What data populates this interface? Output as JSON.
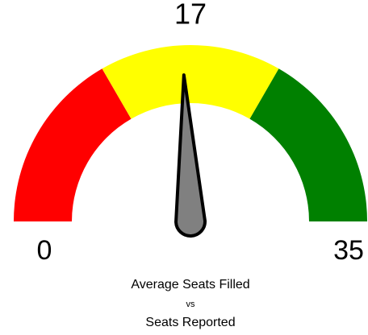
{
  "chart_data": {
    "type": "gauge",
    "value": 17,
    "min": 0,
    "max": 35,
    "bands": [
      {
        "from": 0,
        "to": 11.67,
        "color": "#ff0000"
      },
      {
        "from": 11.67,
        "to": 23.33,
        "color": "#ffff00"
      },
      {
        "from": 23.33,
        "to": 35,
        "color": "#008000"
      }
    ],
    "needle_color": "#808080",
    "title": [
      "Average Seats Filled",
      "vs",
      "Seats Reported"
    ]
  }
}
